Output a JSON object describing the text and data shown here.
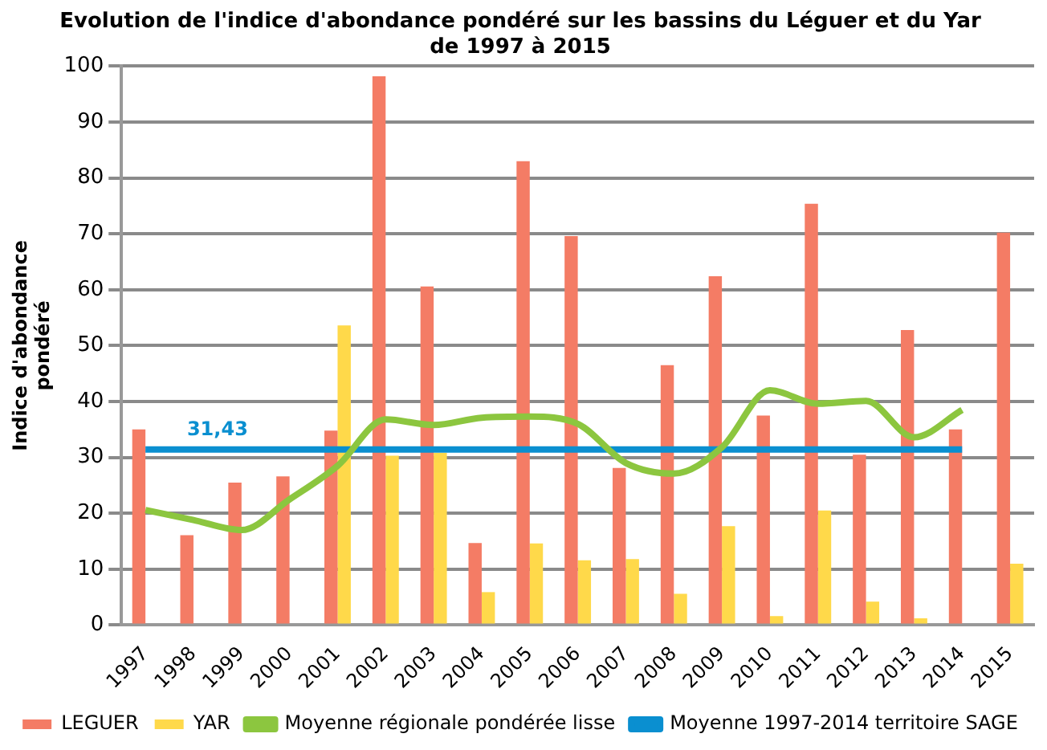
{
  "chart_data": {
    "type": "bar",
    "title": "Evolution de l'indice d'abondance pondéré sur les bassins du Léguer et du Yar\nde 1997 à 2015",
    "ylabel": "Indice d'abondance\npondéré",
    "categories": [
      "1997",
      "1998",
      "1999",
      "2000",
      "2001",
      "2002",
      "2003",
      "2004",
      "2005",
      "2006",
      "2007",
      "2008",
      "2009",
      "2010",
      "2011",
      "2012",
      "2013",
      "2014",
      "2015"
    ],
    "series": [
      {
        "name": "LEGUER",
        "color": "#f47c65",
        "values": [
          35.0,
          16.1,
          25.5,
          26.6,
          34.8,
          98.2,
          60.6,
          14.7,
          83.0,
          69.6,
          28.1,
          46.5,
          62.4,
          37.5,
          75.4,
          30.5,
          52.8,
          35.0,
          70.2
        ]
      },
      {
        "name": "YAR",
        "color": "#ffd94a",
        "values": [
          null,
          null,
          null,
          null,
          53.6,
          30.3,
          30.8,
          5.9,
          14.6,
          11.6,
          11.8,
          5.6,
          17.7,
          1.6,
          20.5,
          4.2,
          1.2,
          null,
          11.0
        ]
      },
      {
        "name": "Moyenne régionale pondérée lisse",
        "type": "line",
        "color": "#8cc63f",
        "values": [
          20.6,
          18.8,
          17.0,
          22.5,
          28.5,
          36.8,
          35.8,
          37.1,
          37.3,
          36.0,
          29.0,
          27.1,
          31.8,
          42.0,
          39.6,
          40.1,
          33.6,
          38.5,
          null
        ]
      },
      {
        "name": "Moyenne 1997-2014 territoire SAGE",
        "type": "line",
        "color": "#0a8fd0",
        "values": [
          31.43,
          31.43,
          31.43,
          31.43,
          31.43,
          31.43,
          31.43,
          31.43,
          31.43,
          31.43,
          31.43,
          31.43,
          31.43,
          31.43,
          31.43,
          31.43,
          31.43,
          31.43,
          null
        ],
        "value_labels": [
          null,
          "31,43",
          null,
          null,
          null,
          null,
          null,
          null,
          null,
          null,
          null,
          null,
          null,
          null,
          null,
          null,
          null,
          null,
          null
        ]
      }
    ],
    "ylim": [
      0,
      100
    ],
    "yticks": [
      0,
      10,
      20,
      30,
      40,
      50,
      60,
      70,
      80,
      90,
      100
    ],
    "grid": "y",
    "legend": "bottom",
    "marker": "none",
    "line_style": "solid"
  }
}
